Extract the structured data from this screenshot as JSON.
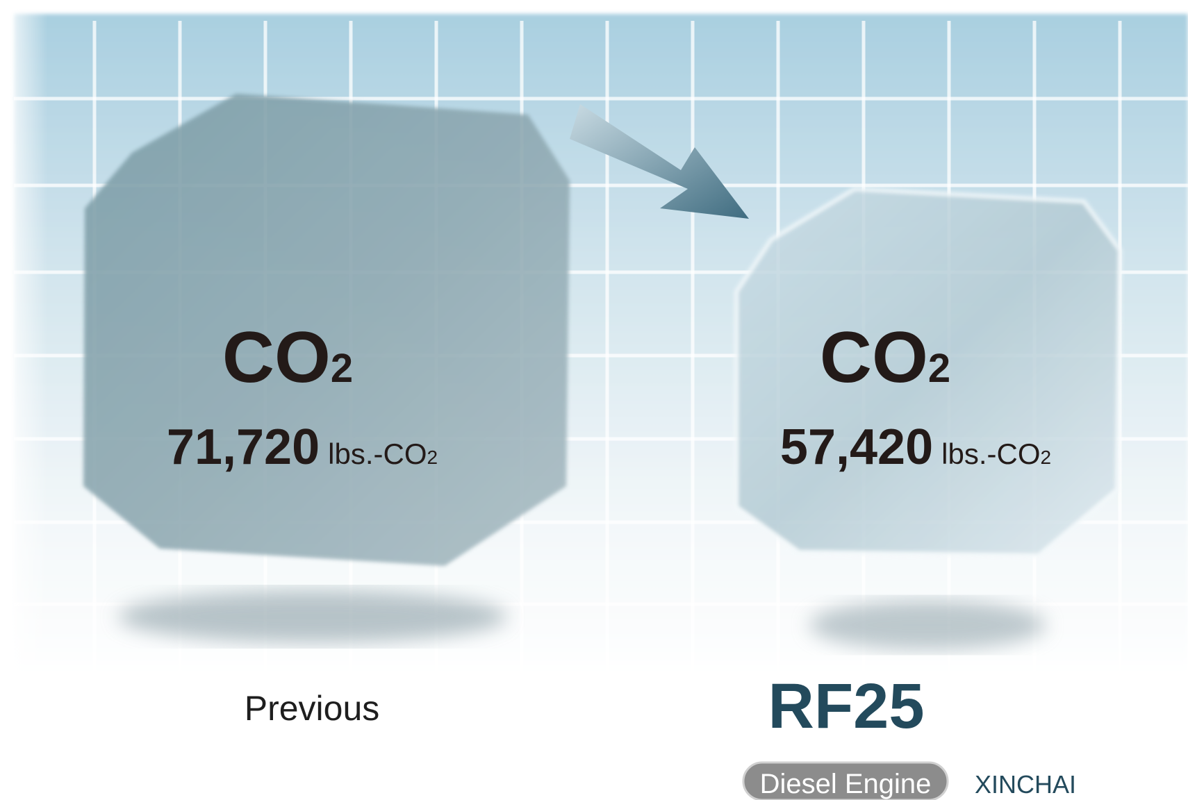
{
  "previous": {
    "formula": {
      "base": "CO",
      "sub": "2"
    },
    "amount": "71,720",
    "unit": {
      "base": "lbs.-CO",
      "sub": "2"
    },
    "label": "Previous"
  },
  "current": {
    "formula": {
      "base": "CO",
      "sub": "2"
    },
    "amount": "57,420",
    "unit": {
      "base": "lbs.-CO",
      "sub": "2"
    },
    "model": "RF25",
    "badge": "Diesel Engine",
    "maker": "XINCHAI"
  }
}
